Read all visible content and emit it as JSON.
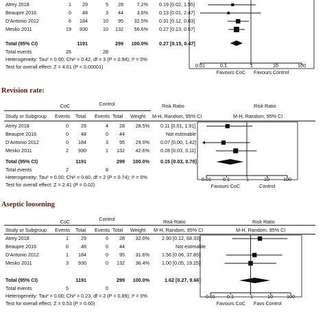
{
  "colors": {
    "ink": "#111111",
    "section_title": "#5a1a10"
  },
  "plots": [
    {
      "key": "top",
      "title": "",
      "header": null,
      "studies": [
        {
          "name": "Atrey 2018",
          "ev1": "1",
          "n1": "29",
          "ev2": "5",
          "n2": "28",
          "weight": "7.2%",
          "rr": "0.19 [0.02, 1.55]",
          "est": 0.19,
          "lo": 0.02,
          "hi": 1.55
        },
        {
          "name": "Beaupre 2016",
          "ev1": "0",
          "n1": "48",
          "ev2": "3",
          "n2": "44",
          "weight": "3.6%",
          "rr": "0.13 [0.01, 2.47]",
          "est": 0.13,
          "lo": 0.01,
          "hi": 2.47
        },
        {
          "name": "D'Antonio 2012",
          "ev1": "6",
          "n1": "184",
          "ev2": "10",
          "n2": "95",
          "weight": "32.5%",
          "rr": "0.31 [0.12, 0.83]",
          "est": 0.31,
          "lo": 0.12,
          "hi": 0.83
        },
        {
          "name": "Mesko 2011",
          "ev1": "19",
          "n1": "930",
          "ev2": "10",
          "n2": "132",
          "weight": "56.6%",
          "rr": "0.27 [0.13, 0.57]",
          "est": 0.27,
          "lo": 0.13,
          "hi": 0.57
        }
      ],
      "total": {
        "label": "Total (95% CI)",
        "n1": "1191",
        "n2": "299",
        "weight": "100.0%",
        "rr": "0.27 [0.15, 0.47]",
        "est": 0.27,
        "lo": 0.15,
        "hi": 0.47
      },
      "events": {
        "label": "Total events",
        "ev1": "26",
        "ev2": "28"
      },
      "heterogeneity": "Heterogeneity: Tau² = 0.00; Chi² = 0.42, df = 3 (P = 0.94); I² = 0%",
      "overall": "Test for overall effect: Z = 4.61 (P < 0.00001)",
      "ticks": [
        "0.01",
        "0.1",
        "1",
        "10",
        "100"
      ],
      "favours_left": "Favours CoC",
      "favours_right": "Favours  Control"
    },
    {
      "key": "revision",
      "title": "Revision rate:",
      "header": {
        "group1": "CoC",
        "group2": "Control",
        "rr": "Risk Ratio",
        "rr_graph": "Risk Ratio",
        "study": "Study or Subgroup",
        "events": "Events",
        "total": "Total",
        "weight": "Weight",
        "method": "M-H, Random, 95% CI",
        "method_graph": "M-H, Random, 95% CI"
      },
      "studies": [
        {
          "name": "Atrey 2018",
          "ev1": "0",
          "n1": "29",
          "ev2": "4",
          "n2": "28",
          "weight": "28.5%",
          "rr": "0.11 [0.01, 1.91]",
          "est": 0.11,
          "lo": 0.01,
          "hi": 1.91
        },
        {
          "name": "Beaupre 2016",
          "ev1": "0",
          "n1": "48",
          "ev2": "0",
          "n2": "44",
          "weight": "",
          "rr": "Not estimable",
          "est": null
        },
        {
          "name": "D'Antonio 2012",
          "ev1": "0",
          "n1": "184",
          "ev2": "3",
          "n2": "95",
          "weight": "29.0%",
          "rr": "0.07 [0.00, 1.42]",
          "est": 0.07,
          "lo": 0.004,
          "hi": 1.42
        },
        {
          "name": "Mesko 2011",
          "ev1": "2",
          "n1": "930",
          "ev2": "1",
          "n2": "132",
          "weight": "42.6%",
          "rr": "0.28 [0.03, 3.11]",
          "est": 0.28,
          "lo": 0.03,
          "hi": 3.11
        }
      ],
      "total": {
        "label": "Total (95% CI)",
        "n1": "1191",
        "n2": "299",
        "weight": "100.0%",
        "rr": "0.15 [0.03, 0.70]",
        "est": 0.15,
        "lo": 0.03,
        "hi": 0.7
      },
      "events": {
        "label": "Total events",
        "ev1": "2",
        "ev2": "8"
      },
      "heterogeneity": "Heterogeneity: Tau² = 0.00; Chi² = 0.60, df = 2 (P = 0.74); I² = 0%",
      "overall": "Test for overall effect: Z = 2.41 (P = 0.02)",
      "ticks": [
        "0.01",
        "0.1",
        "1",
        "10",
        "100"
      ],
      "favours_left": "Favours CoC",
      "favours_right": "Control"
    },
    {
      "key": "aseptic",
      "title": "Aseptic loosening",
      "header": {
        "group1": "CoC",
        "group2": "Control",
        "rr": "Risk Ratio",
        "rr_graph": "Risk Ratio",
        "study": "Study or Subgroup",
        "events": "Events",
        "total": "Total",
        "weight": "Weight",
        "method": "M-H, Random, 95% CI",
        "method_graph": "M-H, Random, 95% CI"
      },
      "studies": [
        {
          "name": "Atrey 2018",
          "ev1": "1",
          "n1": "29",
          "ev2": "0",
          "n2": "28",
          "weight": "32.0%",
          "rr": "2.90 [0.12, 68.33]",
          "est": 2.9,
          "lo": 0.12,
          "hi": 68.33
        },
        {
          "name": "Beaupre 2016",
          "ev1": "0",
          "n1": "48",
          "ev2": "0",
          "n2": "44",
          "weight": "",
          "rr": "Not estimable",
          "est": null
        },
        {
          "name": "D'Antonio 2012",
          "ev1": "1",
          "n1": "184",
          "ev2": "0",
          "n2": "95",
          "weight": "31.6%",
          "rr": "1.56 [0.06, 37.85]",
          "est": 1.56,
          "lo": 0.06,
          "hi": 37.85
        },
        {
          "name": "Mesko 2011",
          "ev1": "3",
          "n1": "930",
          "ev2": "0",
          "n2": "132",
          "weight": "36.4%",
          "rr": "1.00 [0.05, 19.25]",
          "est": 1.0,
          "lo": 0.05,
          "hi": 19.25
        }
      ],
      "total": {
        "label": "Total (95% CI)",
        "n1": "1191",
        "n2": "299",
        "weight": "100.0%",
        "rr": "1.62 [0.27, 9.66]",
        "est": 1.62,
        "lo": 0.27,
        "hi": 9.66
      },
      "events": {
        "label": "Total events",
        "ev1": "5",
        "ev2": "0"
      },
      "heterogeneity": "Heterogeneity: Tau² = 0.00; Chi² = 0.23, df = 2 (P = 0.89); I² = 0%",
      "overall": "Test for overall effect: Z = 0.53 (P = 0.60)",
      "ticks": [
        "0.01",
        "0.1",
        "1",
        "10",
        "100"
      ],
      "favours_left": "Favours CoC",
      "favours_right": "Favs  Control"
    }
  ],
  "chart_data": [
    {
      "type": "forest",
      "title": "",
      "x_scale": "log",
      "xlim": [
        0.01,
        100
      ],
      "studies": [
        "Atrey 2018",
        "Beaupre 2016",
        "D'Antonio 2012",
        "Mesko 2011"
      ],
      "risk_ratio": [
        0.19,
        0.13,
        0.31,
        0.27
      ],
      "ci_low": [
        0.02,
        0.01,
        0.12,
        0.13
      ],
      "ci_high": [
        1.55,
        2.47,
        0.83,
        0.57
      ],
      "weights": [
        7.2,
        3.6,
        32.5,
        56.6
      ],
      "pooled": {
        "rr": 0.27,
        "ci": [
          0.15,
          0.47
        ]
      }
    },
    {
      "type": "forest",
      "title": "Revision rate:",
      "x_scale": "log",
      "xlim": [
        0.01,
        100
      ],
      "studies": [
        "Atrey 2018",
        "Beaupre 2016",
        "D'Antonio 2012",
        "Mesko 2011"
      ],
      "risk_ratio": [
        0.11,
        null,
        0.07,
        0.28
      ],
      "ci_low": [
        0.01,
        null,
        0.0,
        0.03
      ],
      "ci_high": [
        1.91,
        null,
        1.42,
        3.11
      ],
      "weights": [
        28.5,
        null,
        29.0,
        42.6
      ],
      "pooled": {
        "rr": 0.15,
        "ci": [
          0.03,
          0.7
        ]
      }
    },
    {
      "type": "forest",
      "title": "Aseptic loosening",
      "x_scale": "log",
      "xlim": [
        0.01,
        100
      ],
      "studies": [
        "Atrey 2018",
        "Beaupre 2016",
        "D'Antonio 2012",
        "Mesko 2011"
      ],
      "risk_ratio": [
        2.9,
        null,
        1.56,
        1.0
      ],
      "ci_low": [
        0.12,
        null,
        0.06,
        0.05
      ],
      "ci_high": [
        68.33,
        null,
        37.85,
        19.25
      ],
      "weights": [
        32.0,
        null,
        31.6,
        36.4
      ],
      "pooled": {
        "rr": 1.62,
        "ci": [
          0.27,
          9.66
        ]
      }
    }
  ]
}
